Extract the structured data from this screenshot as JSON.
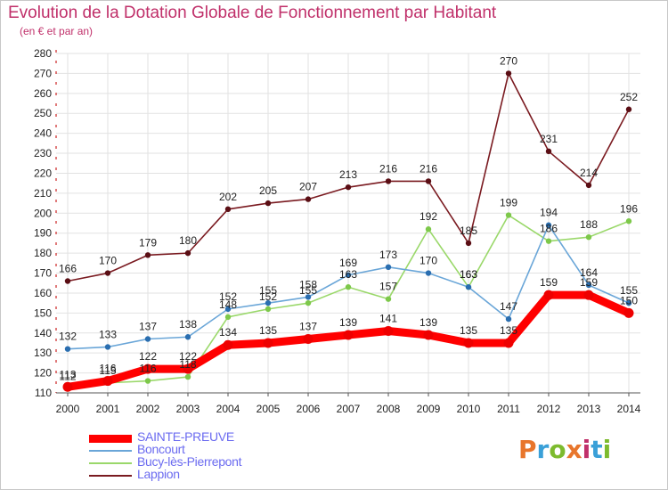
{
  "header": {
    "title": "Evolution de la Dotation Globale de Fonctionnement par Habitant",
    "subtitle": "(en € et par an)"
  },
  "logo": {
    "text": "Proxiti",
    "colors": [
      "#e8762c",
      "#3aa0d8",
      "#7dbb2e",
      "#e8762c",
      "#c0306a",
      "#3aa0d8",
      "#7dbb2e"
    ]
  },
  "chart_data": {
    "type": "line",
    "title": "Evolution de la Dotation Globale de Fonctionnement par Habitant",
    "subtitle": "(en € et par an)",
    "xlabel": "",
    "ylabel": "",
    "ylim": [
      110,
      280
    ],
    "yticks": [
      110,
      120,
      130,
      140,
      150,
      160,
      170,
      180,
      190,
      200,
      210,
      220,
      230,
      240,
      250,
      260,
      270,
      280
    ],
    "categories": [
      "2000",
      "2001",
      "2002",
      "2003",
      "2004",
      "2005",
      "2006",
      "2007",
      "2008",
      "2009",
      "2010",
      "2011",
      "2012",
      "2013",
      "2014"
    ],
    "grid": true,
    "legend_position": "bottom-left",
    "series": [
      {
        "name": "Lappion",
        "color": "#7a1a20",
        "marker_color": "#5a0e14",
        "values": [
          166,
          170,
          179,
          180,
          202,
          205,
          207,
          213,
          216,
          216,
          185,
          270,
          231,
          214,
          252
        ]
      },
      {
        "name": "Bucy-lès-Pierrepont",
        "color": "#9ad86a",
        "marker_color": "#7dc84a",
        "values": [
          112,
          115,
          116,
          118,
          148,
          152,
          155,
          163,
          157,
          192,
          163,
          199,
          186,
          188,
          196
        ]
      },
      {
        "name": "Boncourt",
        "color": "#6aa6d8",
        "marker_color": "#2a6eb0",
        "values": [
          132,
          133,
          137,
          138,
          152,
          155,
          158,
          169,
          173,
          170,
          163,
          147,
          194,
          164,
          155
        ]
      },
      {
        "name": "SAINTE-PREUVE",
        "color": "#ff0000",
        "marker_color": "#ee0000",
        "values": [
          113,
          116,
          122,
          122,
          134,
          135,
          137,
          139,
          141,
          139,
          135,
          135,
          159,
          159,
          150
        ]
      }
    ]
  }
}
